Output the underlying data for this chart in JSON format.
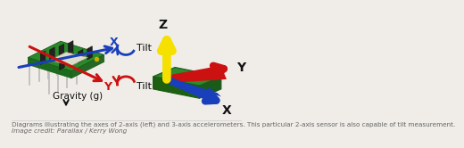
{
  "background_color": "#f0ede8",
  "caption_line1": "Diagrams illustrating the axes of 2-axis (left) and 3-axis accelerometers. This particular 2-axis sensor is also capable of tilt measurement.",
  "caption_line2": "Image credit: Parallax / Kerry Wong",
  "caption_fontsize": 5.2,
  "caption_color": "#666666",
  "left_panel": {
    "gravity_label": "Gravity (g)",
    "x_label": "X",
    "y_label": "Y",
    "tilt_label": "Tilt",
    "blue_color": "#1a3fbb",
    "red_color": "#cc1111"
  },
  "right_panel": {
    "z_label": "Z",
    "y_label": "Y",
    "x_label": "X",
    "z_color": "#f5e000",
    "y_color": "#cc1111",
    "x_color": "#1a3fbb",
    "board_top_color": "#2d8a2d",
    "board_side_color": "#1d6010",
    "board_front_color": "#1a5a1a"
  }
}
